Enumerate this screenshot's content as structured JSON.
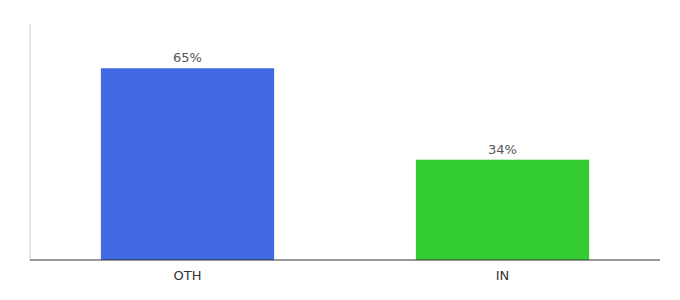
{
  "chart_data": {
    "type": "bar",
    "categories": [
      "OTH",
      "IN"
    ],
    "values": [
      65,
      34
    ],
    "colors": [
      "#4169e1",
      "#33cc33"
    ],
    "value_labels": [
      "65%",
      "34%"
    ],
    "data_labels": true,
    "ylim": [
      0,
      80
    ],
    "tick_labels": "x",
    "grid": false
  }
}
